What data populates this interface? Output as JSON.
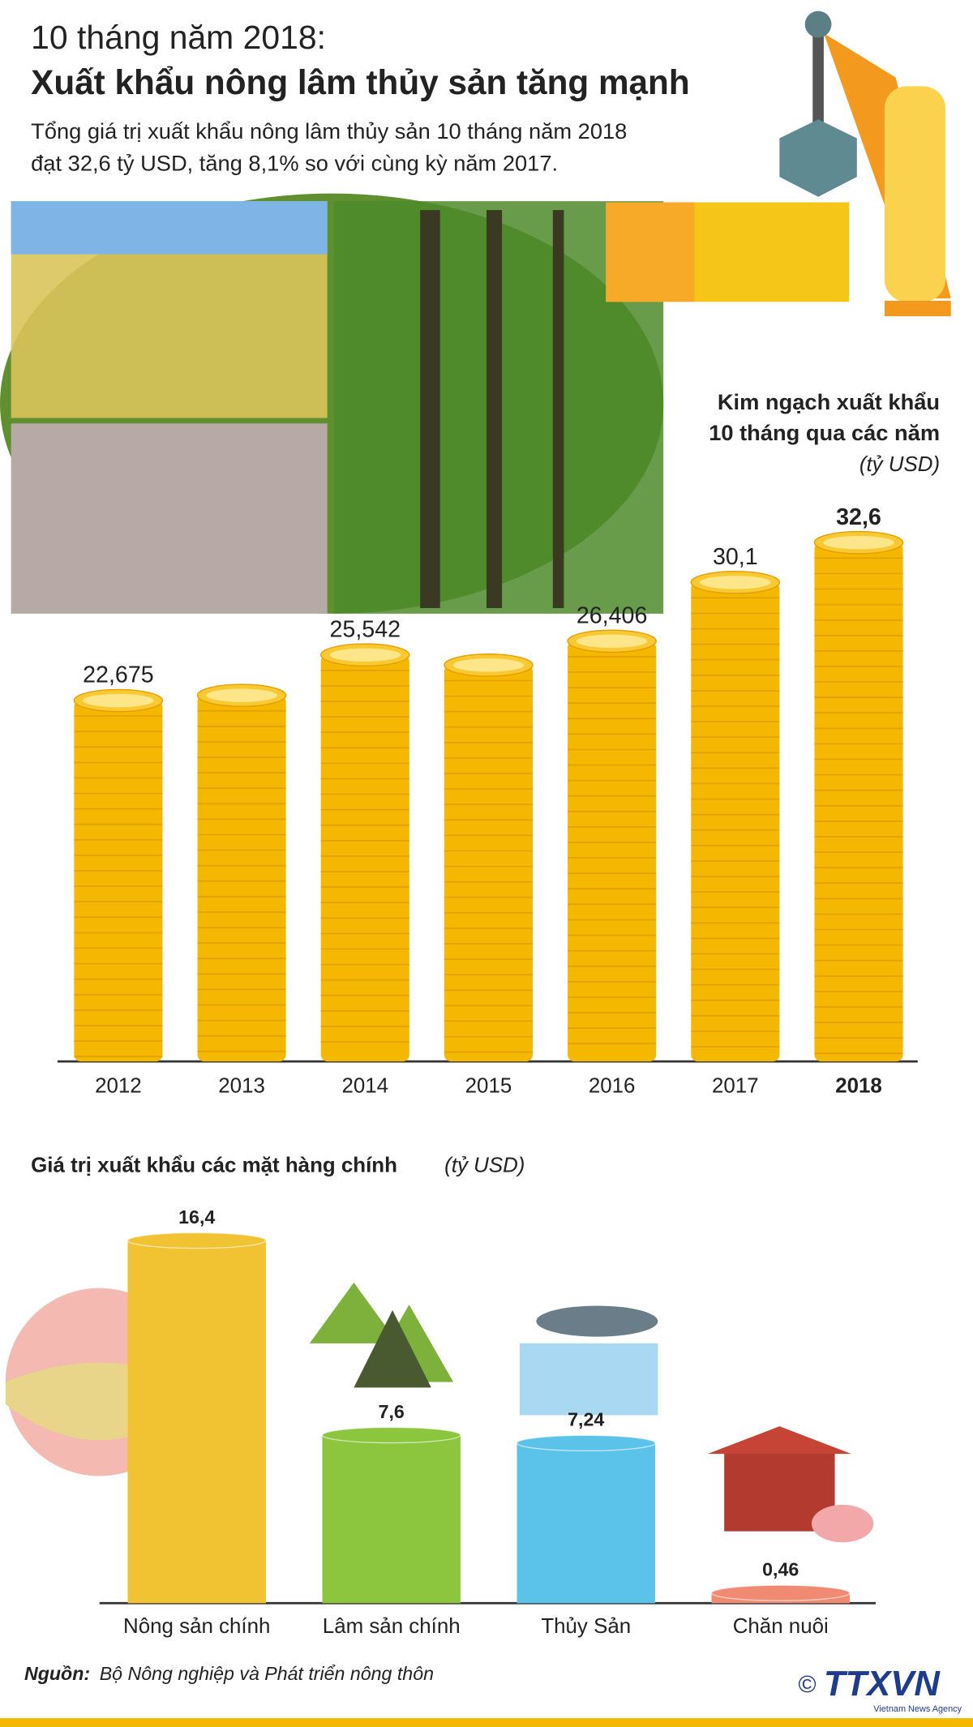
{
  "header": {
    "kicker": "10 tháng năm 2018:",
    "title": "Xuất khẩu nông lâm thủy sản tăng mạnh",
    "subtitle": [
      "Tổng giá trị xuất khẩu nông lâm thủy sản 10 tháng năm 2018",
      "đạt 32,6 tỷ USD, tăng 8,1% so với cùng kỳ năm 2017."
    ]
  },
  "chart_data": [
    {
      "type": "coin-bar",
      "title": [
        "Kim ngạch xuất khẩu",
        "10 tháng qua các năm"
      ],
      "unit": "(tỷ USD)",
      "categories": [
        "2012",
        "2013",
        "2014",
        "2015",
        "2016",
        "2017",
        "2018"
      ],
      "values": [
        22.675,
        23.0,
        25.542,
        24.9,
        26.406,
        30.1,
        32.6
      ],
      "value_labels": [
        "22,675",
        null,
        "25,542",
        null,
        "26,406",
        "30,1",
        "32,6"
      ],
      "color": "#f5b800",
      "ylim": [
        0,
        33
      ]
    },
    {
      "type": "cylinder-bar",
      "title": "Giá trị xuất khẩu các mặt hàng chính",
      "unit": "(tỷ USD)",
      "categories": [
        "Nông sản chính",
        "Lâm sản chính",
        "Thủy Sản",
        "Chăn nuôi"
      ],
      "values": [
        16.4,
        7.6,
        7.24,
        0.46
      ],
      "value_labels": [
        "16,4",
        "7,6",
        "7,24",
        "0,46"
      ],
      "colors": [
        "#f1c232",
        "#8cc63f",
        "#5bc2ea",
        "#f08a72"
      ],
      "ylim": [
        0,
        17
      ]
    }
  ],
  "footer": {
    "source_label": "Nguồn:",
    "source": "Bộ Nông nghiệp và Phát triển nông thôn",
    "copyright": "©",
    "logo": "TTXVN",
    "logo_sub": "Vietnam News Agency"
  }
}
